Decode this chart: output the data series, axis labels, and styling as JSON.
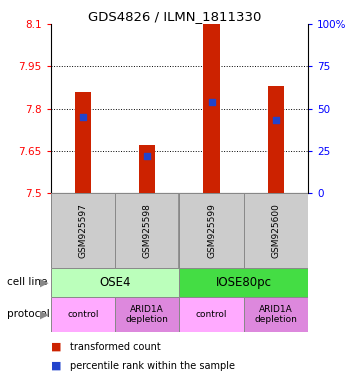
{
  "title": "GDS4826 / ILMN_1811330",
  "samples": [
    "GSM925597",
    "GSM925598",
    "GSM925599",
    "GSM925600"
  ],
  "bar_values": [
    7.86,
    7.67,
    8.1,
    7.88
  ],
  "percentile_values": [
    45,
    22,
    54,
    43
  ],
  "ylim_left": [
    7.5,
    8.1
  ],
  "ylim_right": [
    0,
    100
  ],
  "yticks_left": [
    7.5,
    7.65,
    7.8,
    7.95,
    8.1
  ],
  "ytick_labels_left": [
    "7.5",
    "7.65",
    "7.8",
    "7.95",
    "8.1"
  ],
  "yticks_right": [
    0,
    25,
    50,
    75,
    100
  ],
  "ytick_labels_right": [
    "0",
    "25",
    "50",
    "75",
    "100%"
  ],
  "bar_color": "#cc2200",
  "blue_color": "#2244cc",
  "cell_line_groups": [
    {
      "label": "OSE4",
      "color": "#bbffbb",
      "span": [
        0,
        2
      ]
    },
    {
      "label": "IOSE80pc",
      "color": "#44dd44",
      "span": [
        2,
        4
      ]
    }
  ],
  "protocol_groups": [
    {
      "label": "control",
      "color": "#ffaaff",
      "span": [
        0,
        1
      ]
    },
    {
      "label": "ARID1A\ndepletion",
      "color": "#dd88dd",
      "span": [
        1,
        2
      ]
    },
    {
      "label": "control",
      "color": "#ffaaff",
      "span": [
        2,
        3
      ]
    },
    {
      "label": "ARID1A\ndepletion",
      "color": "#dd88dd",
      "span": [
        3,
        4
      ]
    }
  ],
  "legend_red_label": "transformed count",
  "legend_blue_label": "percentile rank within the sample",
  "cell_line_label": "cell line",
  "protocol_label": "protocol",
  "bar_width": 0.25
}
